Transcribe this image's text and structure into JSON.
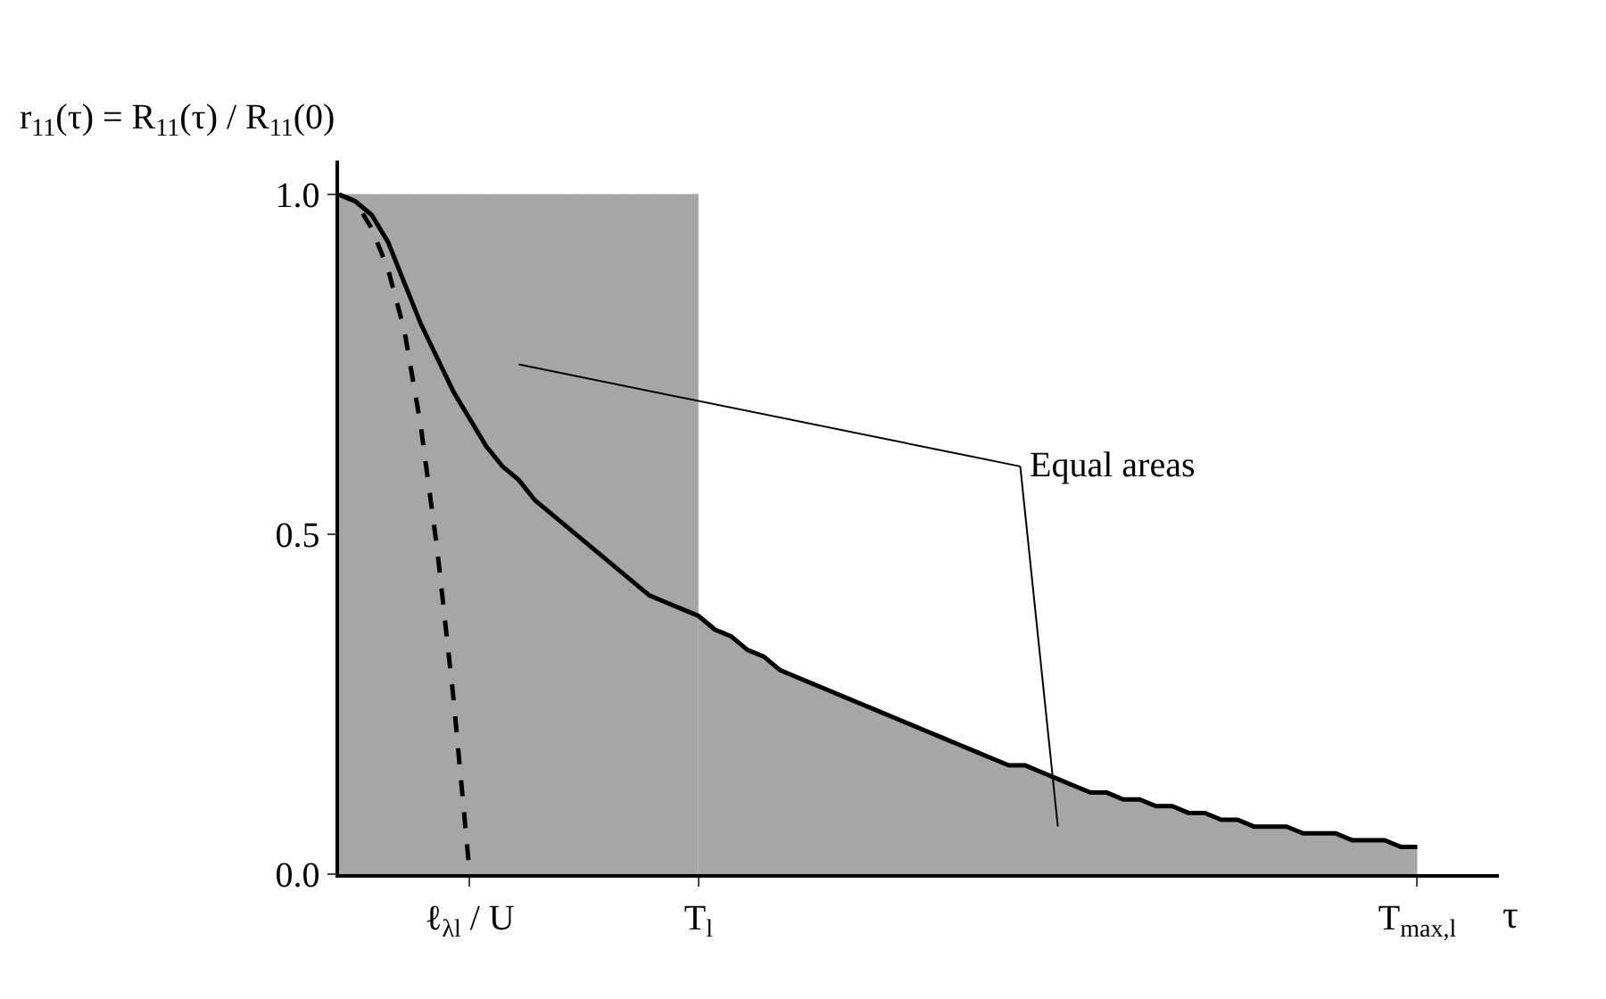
{
  "chart_data": {
    "type": "line",
    "ylabel": "r$_{11}$(τ) = R$_{11}$(τ) / R$_{11}$(0)",
    "xlabel": "τ",
    "categories": [
      null,
      null,
      null,
      null,
      null,
      null,
      null,
      null,
      "ℓ$_{λl}$ / U",
      null,
      null,
      null,
      null,
      null,
      null,
      null,
      null,
      null,
      null,
      null,
      null,
      null,
      "T$_{l}$",
      null,
      null,
      null,
      null,
      null,
      null,
      null,
      null,
      null,
      null,
      null,
      null,
      null,
      null,
      null,
      null,
      null,
      null,
      null,
      null,
      null,
      null,
      null,
      null,
      null,
      null,
      null,
      null,
      null,
      null,
      null,
      null,
      null,
      null,
      null,
      null,
      null,
      null,
      null,
      null,
      null,
      null,
      null,
      "T$_{max,l}$",
      null,
      null,
      null,
      null,
      null
    ],
    "series": [
      {
        "type": "area",
        "color": "#a6a6a6",
        "values": [
          1.0,
          1.0,
          1.0,
          1.0,
          1.0,
          1.0,
          1.0,
          1.0,
          1.0,
          1.0,
          1.0,
          1.0,
          1.0,
          1.0,
          1.0,
          1.0,
          1.0,
          1.0,
          1.0,
          1.0,
          1.0,
          1.0,
          1.0,
          null,
          null,
          null,
          null,
          null,
          null,
          null,
          null,
          null,
          null,
          null,
          null,
          null,
          null,
          null,
          null,
          null,
          null,
          null,
          null,
          null,
          null,
          null,
          null,
          null,
          null,
          null,
          null,
          null,
          null,
          null,
          null,
          null,
          null,
          null,
          null,
          null,
          null,
          null,
          null,
          null,
          null,
          null,
          null,
          null,
          null,
          null,
          null,
          null
        ]
      },
      {
        "type": "area",
        "color": "#a6a6a6",
        "values": [
          null,
          null,
          null,
          null,
          null,
          null,
          null,
          null,
          null,
          null,
          null,
          null,
          null,
          null,
          null,
          null,
          null,
          null,
          null,
          null,
          null,
          null,
          0.38,
          0.36,
          0.35,
          0.33,
          0.32,
          0.3,
          0.29,
          0.28,
          0.27,
          0.26,
          0.25,
          0.24,
          0.23,
          0.22,
          0.21,
          0.2,
          0.19,
          0.18,
          0.17,
          0.16,
          0.16,
          0.15,
          0.14,
          0.13,
          0.12,
          0.12,
          0.11,
          0.11,
          0.1,
          0.1,
          0.09,
          0.09,
          0.08,
          0.08,
          0.07,
          0.07,
          0.07,
          0.06,
          0.06,
          0.06,
          0.05,
          0.05,
          0.05,
          0.04,
          0.04,
          null,
          null,
          null,
          null,
          null
        ]
      },
      {
        "color": "#000000",
        "line_style": "solid",
        "values": [
          1.0,
          0.99,
          0.97,
          0.93,
          0.87,
          0.81,
          0.76,
          0.71,
          0.67,
          0.63,
          0.6,
          0.58,
          0.55,
          0.53,
          0.51,
          0.49,
          0.47,
          0.45,
          0.43,
          0.41,
          0.4,
          0.39,
          0.38,
          0.36,
          0.35,
          0.33,
          0.32,
          0.3,
          0.29,
          0.28,
          0.27,
          0.26,
          0.25,
          0.24,
          0.23,
          0.22,
          0.21,
          0.2,
          0.19,
          0.18,
          0.17,
          0.16,
          0.16,
          0.15,
          0.14,
          0.13,
          0.12,
          0.12,
          0.11,
          0.11,
          0.1,
          0.1,
          0.09,
          0.09,
          0.08,
          0.08,
          0.07,
          0.07,
          0.07,
          0.06,
          0.06,
          0.06,
          0.05,
          0.05,
          0.05,
          0.04,
          0.04,
          null,
          null,
          null,
          null,
          null
        ]
      },
      {
        "color": "#000000",
        "line_style": "dashed",
        "values": [
          1.0,
          0.99,
          0.95,
          0.89,
          0.8,
          0.66,
          0.48,
          0.26,
          0.0,
          null,
          null,
          null,
          null,
          null,
          null,
          null,
          null,
          null,
          null,
          null,
          null,
          null,
          null,
          null,
          null,
          null,
          null,
          null,
          null,
          null,
          null,
          null,
          null,
          null,
          null,
          null,
          null,
          null,
          null,
          null,
          null,
          null,
          null,
          null,
          null,
          null,
          null,
          null,
          null,
          null,
          null,
          null,
          null,
          null,
          null,
          null,
          null,
          null,
          null,
          null,
          null,
          null,
          null,
          null,
          null,
          null,
          null,
          null,
          null,
          null,
          null,
          null
        ]
      }
    ],
    "annotations": [
      "Equal areas"
    ],
    "ylim": [
      0,
      1.05
    ],
    "yticks": [
      {
        "value": 0,
        "label": "0.0"
      },
      {
        "value": 0.5,
        "label": "0.5"
      },
      {
        "value": 1.0,
        "label": "1.0"
      }
    ],
    "grid": false,
    "marker": "none"
  }
}
